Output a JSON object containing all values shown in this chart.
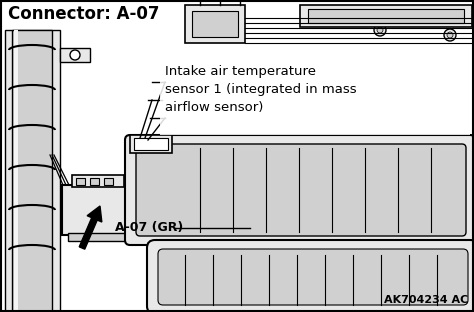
{
  "title": "Connector: A-07",
  "label_sensor": "Intake air temperature\nsensor 1 (integrated in mass\nairflow sensor)",
  "label_connector": "A-07 (GR)",
  "label_code": "AK704234 AC",
  "bg_color": "#ffffff",
  "border_color": "#000000",
  "text_color": "#000000",
  "fig_width": 4.74,
  "fig_height": 3.12,
  "dpi": 100
}
